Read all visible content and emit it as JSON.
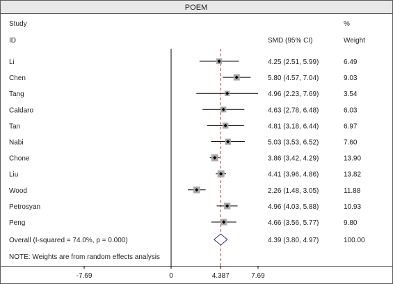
{
  "chart_data": {
    "type": "forest",
    "title": "POEM",
    "columns": {
      "study_header_1": "Study",
      "study_header_2": "ID",
      "effect_header": "SMD (95% CI)",
      "weight_header_1": "%",
      "weight_header_2": "Weight"
    },
    "studies": [
      {
        "id": "Li",
        "smd": 4.25,
        "lo": 2.51,
        "hi": 5.99,
        "ci_text": "4.25 (2.51, 5.99)",
        "weight": 6.49,
        "weight_text": "6.49"
      },
      {
        "id": "Chen",
        "smd": 5.8,
        "lo": 4.57,
        "hi": 7.04,
        "ci_text": "5.80 (4.57, 7.04)",
        "weight": 9.03,
        "weight_text": "9.03"
      },
      {
        "id": "Tang",
        "smd": 4.96,
        "lo": 2.23,
        "hi": 7.69,
        "ci_text": "4.96 (2.23, 7.69)",
        "weight": 3.54,
        "weight_text": "3.54"
      },
      {
        "id": "Caldaro",
        "smd": 4.63,
        "lo": 2.78,
        "hi": 6.48,
        "ci_text": "4.63 (2.78, 6.48)",
        "weight": 6.03,
        "weight_text": "6.03"
      },
      {
        "id": "Tan",
        "smd": 4.81,
        "lo": 3.18,
        "hi": 6.44,
        "ci_text": "4.81 (3.18, 6.44)",
        "weight": 6.97,
        "weight_text": "6.97"
      },
      {
        "id": "Nabi",
        "smd": 5.03,
        "lo": 3.53,
        "hi": 6.52,
        "ci_text": "5.03 (3.53, 6.52)",
        "weight": 7.6,
        "weight_text": "7.60"
      },
      {
        "id": "Chone",
        "smd": 3.86,
        "lo": 3.42,
        "hi": 4.29,
        "ci_text": "3.86 (3.42, 4.29)",
        "weight": 13.9,
        "weight_text": "13.90"
      },
      {
        "id": "Liu",
        "smd": 4.41,
        "lo": 3.96,
        "hi": 4.86,
        "ci_text": "4.41 (3.96, 4.86)",
        "weight": 13.82,
        "weight_text": "13.82"
      },
      {
        "id": "Wood",
        "smd": 2.26,
        "lo": 1.48,
        "hi": 3.05,
        "ci_text": "2.26 (1.48, 3.05)",
        "weight": 11.88,
        "weight_text": "11.88"
      },
      {
        "id": "Petrosyan",
        "smd": 4.96,
        "lo": 4.03,
        "hi": 5.88,
        "ci_text": "4.96 (4.03, 5.88)",
        "weight": 10.93,
        "weight_text": "10.93"
      },
      {
        "id": "Peng",
        "smd": 4.66,
        "lo": 3.56,
        "hi": 5.77,
        "ci_text": "4.66 (3.56, 5.77)",
        "weight": 9.8,
        "weight_text": "9.80"
      }
    ],
    "overall": {
      "label": "Overall  (I-squared = 74.0%, p = 0.000)",
      "smd": 4.39,
      "lo": 3.8,
      "hi": 4.97,
      "ci_text": "4.39 (3.80, 4.97)",
      "weight_text": "100.00"
    },
    "note": "NOTE: Weights are from random effects analysis",
    "x_ticks": [
      {
        "value": -7.69,
        "label": "-7.69"
      },
      {
        "value": 0,
        "label": "0"
      },
      {
        "value": 4.387,
        "label": "4.387"
      },
      {
        "value": 7.69,
        "label": "7.69"
      }
    ],
    "null_line": 0,
    "pooled_line": 4.387,
    "xlim": [
      -7.69,
      7.69
    ],
    "colors": {
      "frame": "#5a5a5a",
      "title_bar": "#e8e8e8",
      "ci_line": "#000000",
      "weight_box": "#a9a9a9",
      "point": "#000000",
      "pooled_line": "#c0392b",
      "diamond": "#2b2b8c"
    }
  }
}
